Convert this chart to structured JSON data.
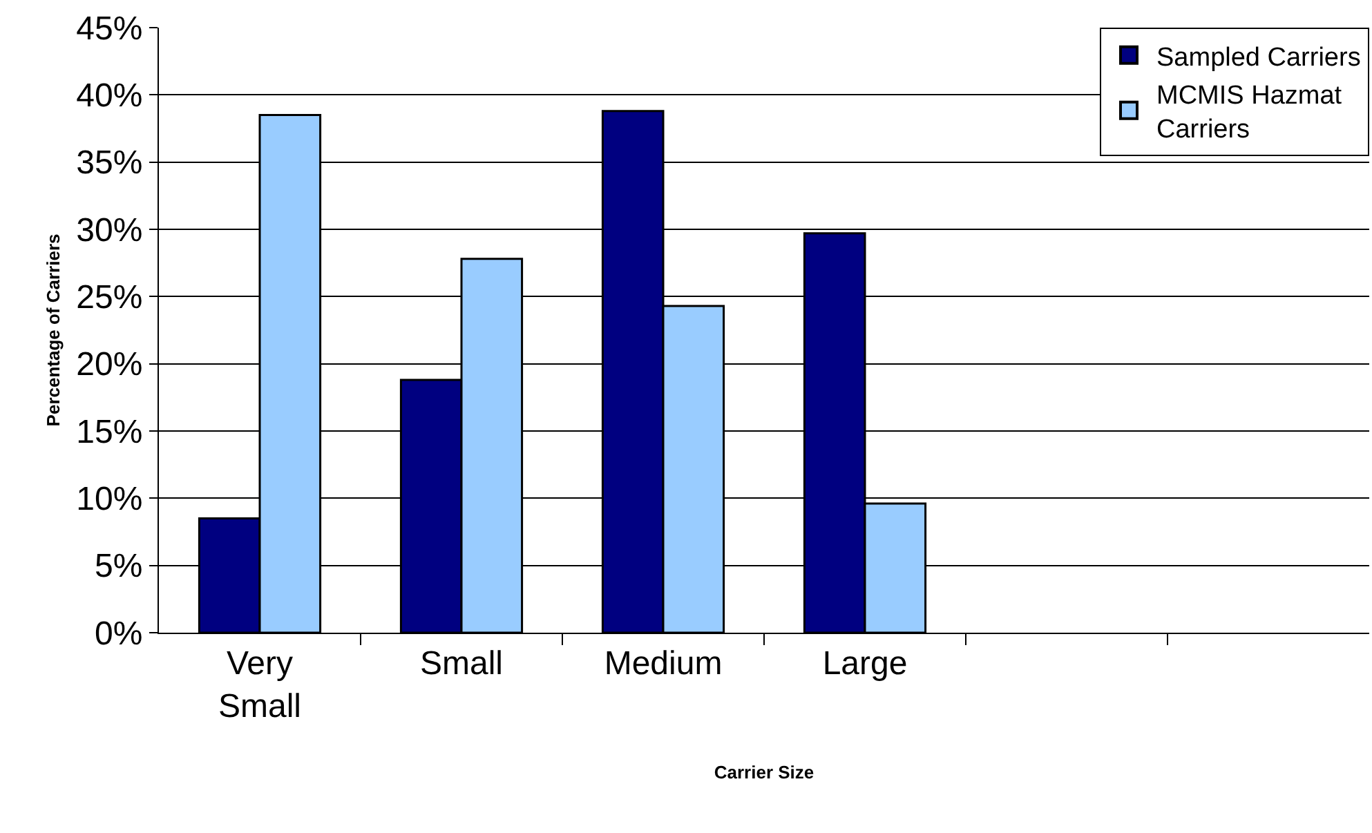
{
  "chart_data": {
    "type": "bar",
    "xlabel": "Carrier Size",
    "ylabel": "Percentage of Carriers",
    "categories": [
      "Very Small",
      "Small",
      "Medium",
      "Large",
      null,
      null
    ],
    "series": [
      {
        "name": "Sampled Carriers",
        "color": "#000080",
        "values": [
          8.5,
          18.8,
          38.8,
          29.7,
          null,
          null
        ]
      },
      {
        "name": "MCMIS Hazmat Carriers",
        "color": "#99ccff",
        "values": [
          38.5,
          27.8,
          24.3,
          9.6,
          null,
          null
        ]
      }
    ],
    "ylim": [
      0,
      45
    ],
    "yticks": [
      {
        "value": 0,
        "label": "0%"
      },
      {
        "value": 5,
        "label": "5%"
      },
      {
        "value": 10,
        "label": "10%"
      },
      {
        "value": 15,
        "label": "15%"
      },
      {
        "value": 20,
        "label": "20%"
      },
      {
        "value": 25,
        "label": "25%"
      },
      {
        "value": 30,
        "label": "30%"
      },
      {
        "value": 35,
        "label": "35%"
      },
      {
        "value": 40,
        "label": "40%"
      },
      {
        "value": 45,
        "label": "45%"
      }
    ],
    "grid": "y",
    "legend": "top right"
  }
}
